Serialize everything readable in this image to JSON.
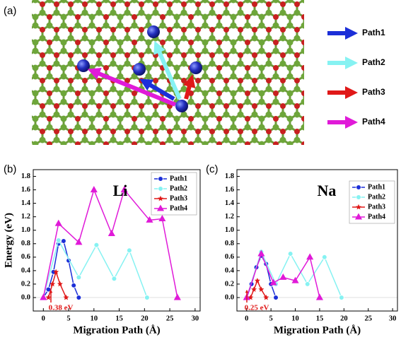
{
  "figure_a": {
    "label": "(a)",
    "legend": [
      {
        "name": "Path1",
        "color": "#1c2fd8"
      },
      {
        "name": "Path2",
        "color": "#86f2f2"
      },
      {
        "name": "Path3",
        "color": "#e01818"
      },
      {
        "name": "Path4",
        "color": "#e01ad8"
      }
    ]
  },
  "chart_data": [
    {
      "type": "line",
      "panel_label": "(b)",
      "annotation": "Li",
      "barrier_label": "0.38 eV",
      "xlabel": "Migration Path (Å)",
      "ylabel": "Energy (eV)",
      "xlim": [
        -2,
        31
      ],
      "xticks": [
        0,
        5,
        10,
        15,
        20,
        25,
        30
      ],
      "ylim": [
        -0.2,
        1.9
      ],
      "yticks": [
        {
          "value": 0,
          "label": "0.0"
        },
        0.2,
        0.4,
        0.6,
        0.8,
        {
          "value": 1,
          "label": "1.0"
        },
        1.2,
        1.4,
        1.6,
        1.8
      ],
      "series": [
        {
          "name": "Path1",
          "color": "#1c2fd8",
          "marker": "circle",
          "x": [
            0,
            1,
            2,
            3,
            4,
            5,
            6,
            7
          ],
          "values": [
            0,
            0.12,
            0.38,
            0.8,
            0.84,
            0.55,
            0.18,
            0
          ]
        },
        {
          "name": "Path2",
          "color": "#86f2f2",
          "marker": "circle",
          "x": [
            0,
            3,
            7,
            10.5,
            14,
            17,
            20.5
          ],
          "values": [
            0,
            0.85,
            0.3,
            0.78,
            0.28,
            0.7,
            0
          ]
        },
        {
          "name": "Path3",
          "color": "#e01818",
          "marker": "star",
          "x": [
            1,
            1.8,
            2.5,
            3.3,
            4.5
          ],
          "values": [
            0,
            0.2,
            0.38,
            0.2,
            0
          ]
        },
        {
          "name": "Path4",
          "color": "#e01ad8",
          "marker": "triangle",
          "x": [
            0,
            3,
            7,
            10,
            13.5,
            16,
            21,
            23.5,
            26.5
          ],
          "values": [
            0,
            1.1,
            0.82,
            1.6,
            0.95,
            1.6,
            1.15,
            1.17,
            0
          ]
        }
      ]
    },
    {
      "type": "line",
      "panel_label": "(c)",
      "annotation": "Na",
      "barrier_label": "0.25 eV",
      "xlabel": "Migration Path (Å)",
      "xlim": [
        -2,
        31
      ],
      "xticks": [
        0,
        5,
        10,
        15,
        20,
        25,
        30
      ],
      "ylim": [
        -0.2,
        1.9
      ],
      "yticks": [
        {
          "value": 0,
          "label": "0.0"
        },
        0.2,
        0.4,
        0.6,
        0.8,
        {
          "value": 1,
          "label": "1.0"
        },
        1.2,
        1.4,
        1.6,
        1.8
      ],
      "series": [
        {
          "name": "Path1",
          "color": "#1c2fd8",
          "marker": "circle",
          "x": [
            0,
            1,
            2,
            3,
            4,
            5,
            6
          ],
          "values": [
            0,
            0.2,
            0.45,
            0.62,
            0.5,
            0.2,
            0
          ]
        },
        {
          "name": "Path2",
          "color": "#86f2f2",
          "marker": "circle",
          "x": [
            0,
            3,
            6,
            9,
            12.5,
            16,
            19.5
          ],
          "values": [
            0,
            0.68,
            0.2,
            0.65,
            0.2,
            0.6,
            0
          ]
        },
        {
          "name": "Path3",
          "color": "#e01818",
          "marker": "star",
          "x": [
            0.8,
            1.5,
            2.2,
            3,
            4
          ],
          "values": [
            0,
            0.12,
            0.25,
            0.12,
            0
          ]
        },
        {
          "name": "Path4",
          "color": "#e01ad8",
          "marker": "triangle",
          "x": [
            0,
            3,
            5.5,
            7.5,
            10,
            13,
            15
          ],
          "values": [
            0,
            0.65,
            0.22,
            0.3,
            0.25,
            0.6,
            0
          ]
        }
      ]
    }
  ]
}
